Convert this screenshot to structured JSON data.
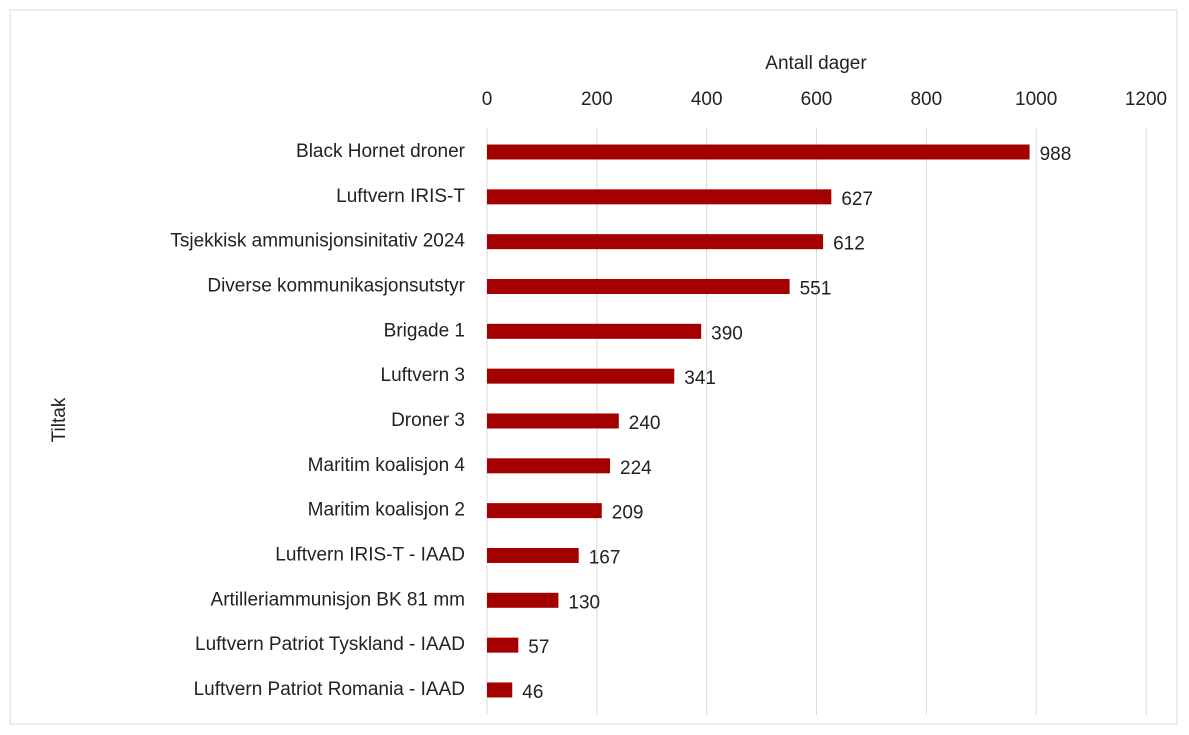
{
  "chart_data": {
    "type": "barh",
    "xlabel": "Antall dager",
    "ylabel": "Tiltak",
    "categories": [
      "Black Hornet droner",
      "Luftvern IRIS-T",
      "Tsjekkisk ammunisjonsinitativ 2024",
      "Diverse kommunikasjonsutstyr",
      "Brigade 1",
      "Luftvern 3",
      "Droner 3",
      "Maritim koalisjon 4",
      "Maritim koalisjon 2",
      "Luftvern IRIS-T - IAAD",
      "Artilleriammunisjon BK 81 mm",
      "Luftvern Patriot Tyskland - IAAD",
      "Luftvern Patriot Romania - IAAD"
    ],
    "values": [
      988,
      627,
      612,
      551,
      390,
      341,
      240,
      224,
      209,
      167,
      130,
      57,
      46
    ],
    "color": "#a50000",
    "xlim": [
      0,
      1200
    ],
    "xticks": [
      0,
      200,
      400,
      600,
      800,
      1000,
      1200
    ],
    "grid": true
  }
}
